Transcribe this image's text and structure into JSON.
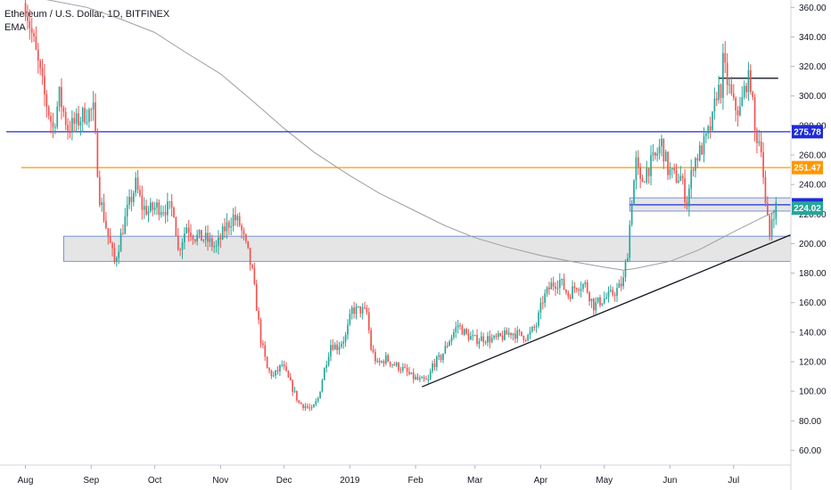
{
  "legend": {
    "symbol": "Ethereum / U.S. Dollar, 1D, BITFINEX",
    "indicator": "EMA"
  },
  "chart_data": {
    "type": "candlestick",
    "title": "Ethereum / U.S. Dollar, 1D, BITFINEX",
    "ylim": [
      50,
      365
    ],
    "y_ticks": [
      "360.00",
      "340.00",
      "320.00",
      "300.00",
      "280.00",
      "260.00",
      "240.00",
      "220.00",
      "200.00",
      "180.00",
      "160.00",
      "140.00",
      "120.00",
      "100.00",
      "80.00",
      "60.00"
    ],
    "x_ticks": [
      "Aug",
      "Sep",
      "Oct",
      "Nov",
      "Dec",
      "2019",
      "Feb",
      "Mar",
      "Apr",
      "May",
      "Jun",
      "Jul"
    ],
    "colors": {
      "up": "#26a69a",
      "down": "#ef5350",
      "ema": "#9e9e9e",
      "blue_line": "#1e2bd6",
      "orange_line": "#ff9800",
      "trend": "#131722",
      "zone_fill": "#e0e0e0",
      "zone_border": "#5b7bd5",
      "grid": "#ffffff"
    },
    "close_path": [
      [
        "2018-08-01",
        363
      ],
      [
        "2018-08-05",
        335
      ],
      [
        "2018-08-10",
        300
      ],
      [
        "2018-08-14",
        278
      ],
      [
        "2018-08-17",
        300
      ],
      [
        "2018-08-21",
        278
      ],
      [
        "2018-08-25",
        282
      ],
      [
        "2018-08-29",
        288
      ],
      [
        "2018-09-02",
        290
      ],
      [
        "2018-09-05",
        232
      ],
      [
        "2018-09-09",
        205
      ],
      [
        "2018-09-12",
        187
      ],
      [
        "2018-09-15",
        205
      ],
      [
        "2018-09-18",
        222
      ],
      [
        "2018-09-22",
        240
      ],
      [
        "2018-09-25",
        225
      ],
      [
        "2018-09-28",
        222
      ],
      [
        "2018-10-02",
        225
      ],
      [
        "2018-10-06",
        224
      ],
      [
        "2018-10-10",
        223
      ],
      [
        "2018-10-12",
        195
      ],
      [
        "2018-10-16",
        212
      ],
      [
        "2018-10-20",
        205
      ],
      [
        "2018-10-25",
        203
      ],
      [
        "2018-10-30",
        197
      ],
      [
        "2018-11-03",
        210
      ],
      [
        "2018-11-07",
        218
      ],
      [
        "2018-11-10",
        213
      ],
      [
        "2018-11-14",
        193
      ],
      [
        "2018-11-16",
        180
      ],
      [
        "2018-11-20",
        135
      ],
      [
        "2018-11-23",
        115
      ],
      [
        "2018-11-26",
        110
      ],
      [
        "2018-11-30",
        118
      ],
      [
        "2018-12-04",
        105
      ],
      [
        "2018-12-08",
        92
      ],
      [
        "2018-12-11",
        90
      ],
      [
        "2018-12-14",
        87
      ],
      [
        "2018-12-17",
        95
      ],
      [
        "2018-12-20",
        115
      ],
      [
        "2018-12-23",
        132
      ],
      [
        "2018-12-26",
        130
      ],
      [
        "2018-12-30",
        137
      ],
      [
        "2019-01-02",
        155
      ],
      [
        "2019-01-06",
        155
      ],
      [
        "2019-01-09",
        153
      ],
      [
        "2019-01-11",
        129
      ],
      [
        "2019-01-14",
        118
      ],
      [
        "2019-01-18",
        122
      ],
      [
        "2019-01-22",
        118
      ],
      [
        "2019-01-26",
        115
      ],
      [
        "2019-01-30",
        110
      ],
      [
        "2019-02-03",
        107
      ],
      [
        "2019-02-07",
        107
      ],
      [
        "2019-02-09",
        118
      ],
      [
        "2019-02-13",
        123
      ],
      [
        "2019-02-17",
        135
      ],
      [
        "2019-02-21",
        145
      ],
      [
        "2019-02-25",
        138
      ],
      [
        "2019-03-01",
        135
      ],
      [
        "2019-03-05",
        136
      ],
      [
        "2019-03-10",
        135
      ],
      [
        "2019-03-14",
        137
      ],
      [
        "2019-03-18",
        140
      ],
      [
        "2019-03-22",
        138
      ],
      [
        "2019-03-26",
        137
      ],
      [
        "2019-03-30",
        145
      ],
      [
        "2019-04-02",
        162
      ],
      [
        "2019-04-06",
        172
      ],
      [
        "2019-04-10",
        175
      ],
      [
        "2019-04-14",
        165
      ],
      [
        "2019-04-18",
        172
      ],
      [
        "2019-04-22",
        172
      ],
      [
        "2019-04-26",
        158
      ],
      [
        "2019-04-30",
        162
      ],
      [
        "2019-05-04",
        165
      ],
      [
        "2019-05-08",
        170
      ],
      [
        "2019-05-10",
        175
      ],
      [
        "2019-05-12",
        195
      ],
      [
        "2019-05-14",
        230
      ],
      [
        "2019-05-16",
        255
      ],
      [
        "2019-05-18",
        240
      ],
      [
        "2019-05-21",
        250
      ],
      [
        "2019-05-25",
        258
      ],
      [
        "2019-05-28",
        268
      ],
      [
        "2019-05-31",
        250
      ],
      [
        "2019-06-03",
        245
      ],
      [
        "2019-06-06",
        245
      ],
      [
        "2019-06-09",
        228
      ],
      [
        "2019-06-12",
        255
      ],
      [
        "2019-06-15",
        262
      ],
      [
        "2019-06-18",
        270
      ],
      [
        "2019-06-21",
        283
      ],
      [
        "2019-06-23",
        303
      ],
      [
        "2019-06-25",
        305
      ],
      [
        "2019-06-26",
        322
      ],
      [
        "2019-06-28",
        310
      ],
      [
        "2019-07-01",
        293
      ],
      [
        "2019-07-04",
        290
      ],
      [
        "2019-07-07",
        310
      ],
      [
        "2019-07-09",
        310
      ],
      [
        "2019-07-11",
        275
      ],
      [
        "2019-07-14",
        268
      ],
      [
        "2019-07-16",
        225
      ],
      [
        "2019-07-18",
        205
      ],
      [
        "2019-07-19",
        218
      ],
      [
        "2019-07-20",
        222
      ],
      [
        "2019-07-21",
        225
      ]
    ],
    "ema_path": [
      [
        "2018-08-01",
        368
      ],
      [
        "2018-08-30",
        360
      ],
      [
        "2018-09-15",
        352
      ],
      [
        "2018-10-01",
        343
      ],
      [
        "2018-10-15",
        330
      ],
      [
        "2018-11-01",
        315
      ],
      [
        "2018-11-15",
        298
      ],
      [
        "2018-12-01",
        278
      ],
      [
        "2018-12-15",
        262
      ],
      [
        "2019-01-01",
        246
      ],
      [
        "2019-01-15",
        234
      ],
      [
        "2019-02-01",
        222
      ],
      [
        "2019-02-15",
        212
      ],
      [
        "2019-03-01",
        204
      ],
      [
        "2019-03-15",
        198
      ],
      [
        "2019-04-01",
        192
      ],
      [
        "2019-04-15",
        188
      ],
      [
        "2019-05-01",
        184
      ],
      [
        "2019-05-10",
        182
      ],
      [
        "2019-05-15",
        183
      ],
      [
        "2019-06-01",
        188
      ],
      [
        "2019-06-15",
        196
      ],
      [
        "2019-07-01",
        208
      ],
      [
        "2019-07-15",
        218
      ],
      [
        "2019-07-21",
        222
      ]
    ],
    "horizontal_lines": [
      {
        "price": 275.78,
        "label": "275.78",
        "color": "blue_line",
        "start": "2018-07-23",
        "end": "2019-07-31"
      },
      {
        "price": 251.47,
        "label": "251.47",
        "color": "orange_line",
        "start": "2018-07-30",
        "end": "2019-07-31"
      },
      {
        "price": 226.28,
        "label": "226.28",
        "color": "blue_line",
        "start": "2019-05-13",
        "end": "2019-07-31"
      },
      {
        "price": 312,
        "label": "",
        "color": "trend",
        "start": "2019-06-24",
        "end": "2019-07-22"
      }
    ],
    "price_tags": [
      {
        "price": 275.78,
        "label": "275.78",
        "color": "#1e2bd6"
      },
      {
        "price": 251.47,
        "label": "251.47",
        "color": "#ff9800"
      },
      {
        "price": 226.28,
        "label": "226.28",
        "color": "#1e2bd6"
      },
      {
        "price": 224.02,
        "label": "224.02",
        "color": "#26a69a"
      }
    ],
    "zones": [
      {
        "from": 188,
        "to": 205,
        "start": "2018-08-19",
        "end": "2019-07-31"
      },
      {
        "from": 222,
        "to": 231,
        "start": "2019-05-13",
        "end": "2019-07-31"
      }
    ],
    "trendline": {
      "start": [
        "2019-02-04",
        103
      ],
      "end": [
        "2019-07-31",
        206
      ]
    }
  }
}
